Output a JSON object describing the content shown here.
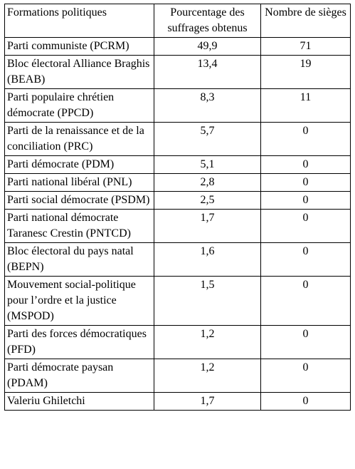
{
  "table": {
    "header": [
      "Formations politiques",
      "Pourcentage des suffrages obtenus",
      "Nombre de sièges"
    ],
    "rows": [
      [
        "Parti communiste (PCRM)",
        "49,9",
        "71"
      ],
      [
        "Bloc électoral Alliance Braghis (BEAB)",
        "13,4",
        "19"
      ],
      [
        "Parti populaire chrétien démocrate (PPCD)",
        "8,3",
        "11"
      ],
      [
        "Parti de la renaissance et de la conciliation (PRC)",
        "5,7",
        "0"
      ],
      [
        "Parti démocrate (PDM)",
        "5,1",
        "0"
      ],
      [
        "Parti national libéral (PNL)",
        "2,8",
        "0"
      ],
      [
        "Parti social démocrate (PSDM)",
        "2,5",
        "0"
      ],
      [
        "Parti national démocrate Taranesc Crestin (PNTCD)",
        "1,7",
        "0"
      ],
      [
        "Bloc électoral du pays natal (BEPN)",
        "1,6",
        "0"
      ],
      [
        "Mouvement social-politique pour l’ordre et la justice (MSPOD)",
        "1,5",
        "0"
      ],
      [
        "Parti des forces démocratiques (PFD)",
        "1,2",
        "0"
      ],
      [
        "Parti démocrate paysan (PDAM)",
        "1,2",
        "0"
      ],
      [
        "Valeriu Ghiletchi",
        "1,7",
        "0"
      ]
    ]
  }
}
